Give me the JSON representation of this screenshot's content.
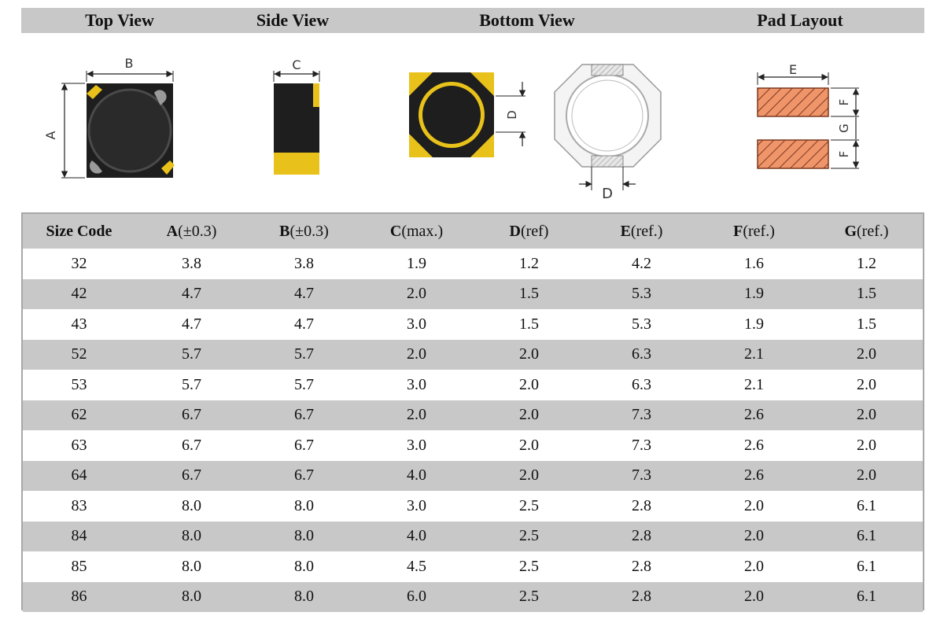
{
  "views": {
    "top": "Top View",
    "side": "Side View",
    "bottom": "Bottom View",
    "pad": "Pad Layout"
  },
  "dimension_letters": {
    "a": "A",
    "b": "B",
    "c": "C",
    "d": "D",
    "e": "E",
    "f": "F",
    "g": "G"
  },
  "colors": {
    "header_gray": "#c8c8c8",
    "body_black": "#1e1e1e",
    "terminal_yellow": "#e8c21a",
    "pad_orange": "#f0946a"
  },
  "table": {
    "headers": [
      {
        "bold": "Size Code",
        "rest": ""
      },
      {
        "bold": "A",
        "rest": "(±0.3)"
      },
      {
        "bold": "B",
        "rest": "(±0.3)"
      },
      {
        "bold": "C",
        "rest": "(max.)"
      },
      {
        "bold": "D",
        "rest": "(ref)"
      },
      {
        "bold": "E",
        "rest": "(ref.)"
      },
      {
        "bold": "F",
        "rest": "(ref.)"
      },
      {
        "bold": "G",
        "rest": "(ref.)"
      }
    ],
    "rows": [
      [
        "32",
        "3.8",
        "3.8",
        "1.9",
        "1.2",
        "4.2",
        "1.6",
        "1.2"
      ],
      [
        "42",
        "4.7",
        "4.7",
        "2.0",
        "1.5",
        "5.3",
        "1.9",
        "1.5"
      ],
      [
        "43",
        "4.7",
        "4.7",
        "3.0",
        "1.5",
        "5.3",
        "1.9",
        "1.5"
      ],
      [
        "52",
        "5.7",
        "5.7",
        "2.0",
        "2.0",
        "6.3",
        "2.1",
        "2.0"
      ],
      [
        "53",
        "5.7",
        "5.7",
        "3.0",
        "2.0",
        "6.3",
        "2.1",
        "2.0"
      ],
      [
        "62",
        "6.7",
        "6.7",
        "2.0",
        "2.0",
        "7.3",
        "2.6",
        "2.0"
      ],
      [
        "63",
        "6.7",
        "6.7",
        "3.0",
        "2.0",
        "7.3",
        "2.6",
        "2.0"
      ],
      [
        "64",
        "6.7",
        "6.7",
        "4.0",
        "2.0",
        "7.3",
        "2.6",
        "2.0"
      ],
      [
        "83",
        "8.0",
        "8.0",
        "3.0",
        "2.5",
        "2.8",
        "2.0",
        "6.1"
      ],
      [
        "84",
        "8.0",
        "8.0",
        "4.0",
        "2.5",
        "2.8",
        "2.0",
        "6.1"
      ],
      [
        "85",
        "8.0",
        "8.0",
        "4.5",
        "2.5",
        "2.8",
        "2.0",
        "6.1"
      ],
      [
        "86",
        "8.0",
        "8.0",
        "6.0",
        "2.5",
        "2.8",
        "2.0",
        "6.1"
      ]
    ]
  }
}
